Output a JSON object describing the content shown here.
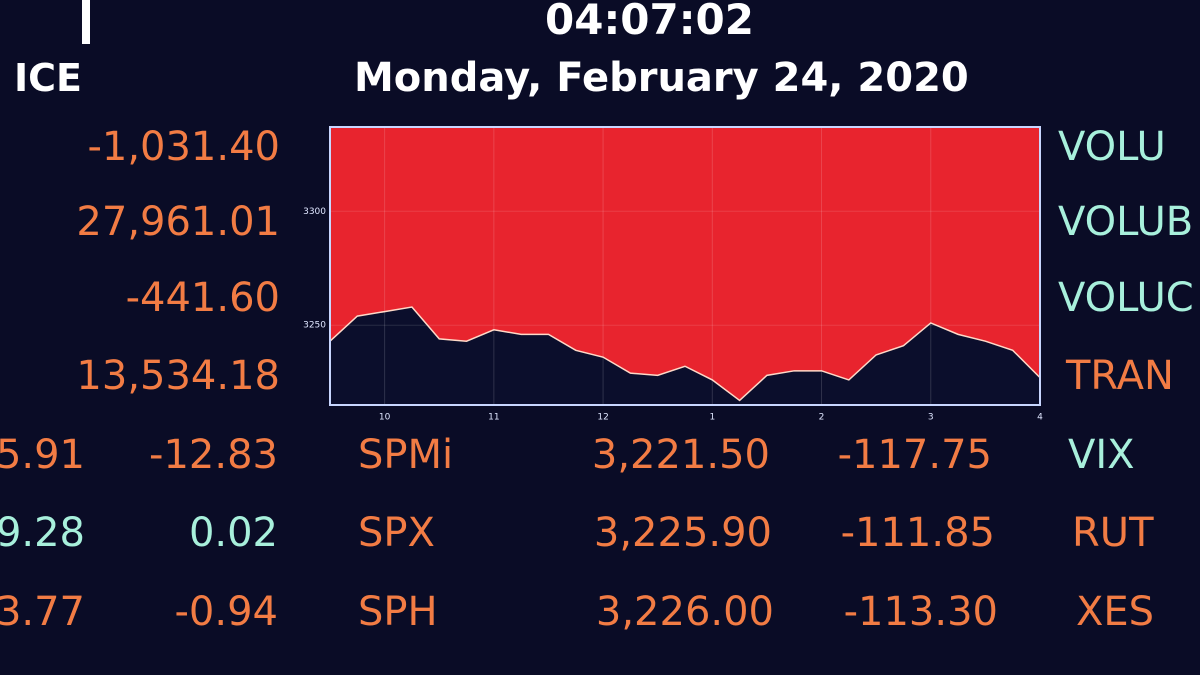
{
  "header": {
    "logo": "ICE",
    "time": "04:07:02",
    "date": "Monday, February 24, 2020"
  },
  "left_values": [
    "-1,031.40",
    "27,961.01",
    "-441.60",
    "13,534.18"
  ],
  "right_labels": [
    "VOLU",
    "VOLUB",
    "VOLUC",
    "TRAN"
  ],
  "table": {
    "rows": [
      [
        "5.91",
        "-12.83",
        "SPMi",
        "3,221.50",
        "-117.75",
        "VIX"
      ],
      [
        "9.28",
        "0.02",
        "SPX",
        "3,225.90",
        "-111.85",
        "RUT"
      ],
      [
        "3.77",
        "-0.94",
        "SPH",
        "3,226.00",
        "-113.30",
        "XES"
      ]
    ]
  },
  "chart_data": {
    "type": "area",
    "x": [
      9.5,
      9.75,
      10,
      10.25,
      10.5,
      10.75,
      11,
      11.25,
      11.5,
      11.75,
      12,
      12.25,
      12.5,
      12.75,
      13,
      13.25,
      13.5,
      13.75,
      14,
      14.25,
      14.5,
      14.75,
      15,
      15.25,
      15.5,
      15.75,
      16
    ],
    "values": [
      3243,
      3254,
      3256,
      3258,
      3244,
      3243,
      3248,
      3246,
      3246,
      3239,
      3236,
      3229,
      3228,
      3232,
      3226,
      3217,
      3228,
      3230,
      3230,
      3226,
      3237,
      3241,
      3251,
      3246,
      3243,
      3239,
      3227
    ],
    "xlim": [
      9.5,
      16
    ],
    "ylim": [
      3215,
      3337
    ],
    "xticks": [
      10,
      11,
      12,
      {
        "value": 13,
        "label": "1"
      },
      {
        "value": 14,
        "label": "2"
      },
      {
        "value": 15,
        "label": "3"
      },
      {
        "value": 16,
        "label": "4"
      }
    ],
    "yticks": [
      3250,
      3300
    ],
    "color": "#e8242e",
    "grid": true
  }
}
